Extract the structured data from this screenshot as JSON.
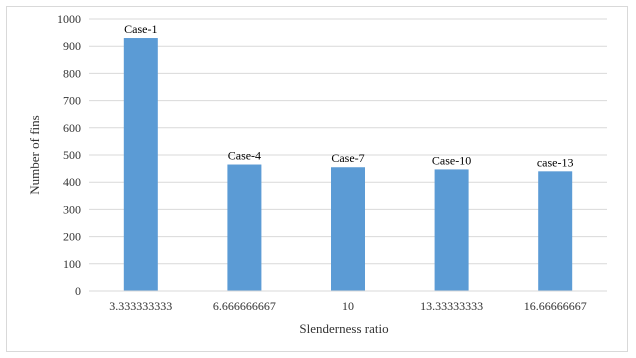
{
  "chart_data": {
    "type": "bar",
    "title": "",
    "xlabel": "Slenderness ratio",
    "ylabel": "Number  of fins",
    "categories": [
      "3.333333333",
      "6.666666667",
      "10",
      "13.33333333",
      "16.66666667"
    ],
    "values": [
      930,
      465,
      455,
      447,
      440
    ],
    "data_labels": [
      "Case-1",
      "Case-4",
      "Case-7",
      "Case-10",
      "case-13"
    ],
    "ylim": [
      0,
      1000
    ],
    "yticks": [
      0,
      100,
      200,
      300,
      400,
      500,
      600,
      700,
      800,
      900,
      1000
    ],
    "grid": true,
    "legend": "none",
    "colors": {
      "bar": "#5b9bd5",
      "grid": "#d9d9d9",
      "text": "#333333"
    }
  }
}
